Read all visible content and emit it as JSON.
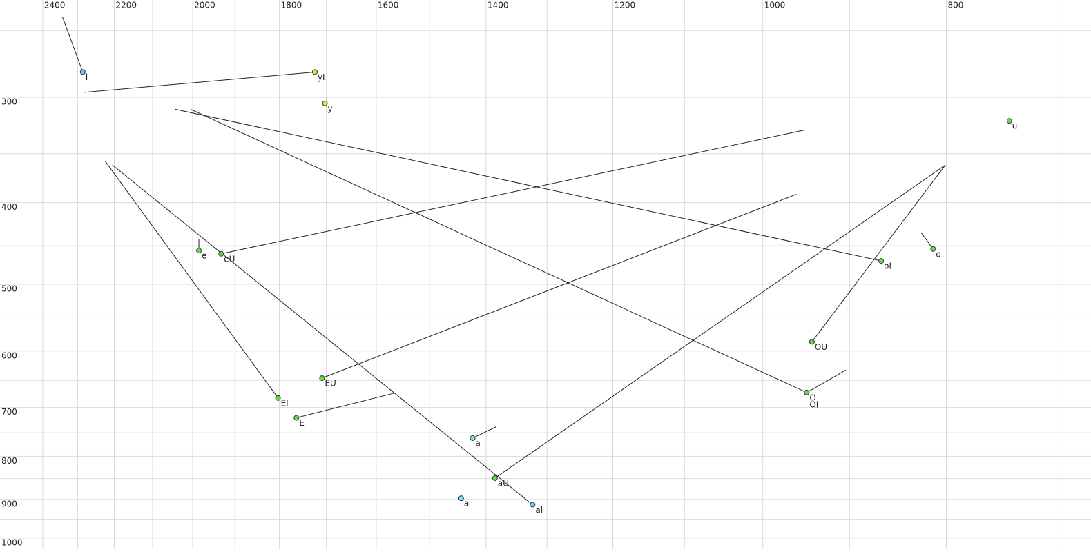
{
  "chart_data": {
    "type": "scatter",
    "xlim": [
      2528,
      671
    ],
    "ylim": [
      230,
      1029
    ],
    "log_x": true,
    "log_y": true,
    "grid": true,
    "xticks": [
      2400,
      2200,
      2000,
      1800,
      1600,
      1400,
      1200,
      1000,
      800
    ],
    "minor_xticks": [
      2300,
      2100,
      1900,
      1700,
      1500,
      1300,
      1100,
      900,
      700
    ],
    "yticks": [
      300,
      400,
      500,
      600,
      700,
      800,
      900,
      1000
    ],
    "minor_yticks": [
      250,
      350,
      450,
      550,
      650,
      750,
      850,
      950
    ],
    "points": [
      {
        "label": "i",
        "x": 2286,
        "y": 280,
        "color": "#8ab8ec",
        "to": [
          2343,
          241
        ]
      },
      {
        "label": "yI",
        "x": 1724,
        "y": 280,
        "color": "#e6e030",
        "to": [
          2282,
          296
        ]
      },
      {
        "label": "y",
        "x": 1703,
        "y": 305,
        "color": "#e6e030"
      },
      {
        "label": "u",
        "x": 741,
        "y": 320,
        "color": "#66dd33"
      },
      {
        "label": "e",
        "x": 1985,
        "y": 456,
        "color": "#66dd33",
        "to": [
          1985,
          442
        ]
      },
      {
        "label": "eU",
        "x": 1932,
        "y": 460,
        "color": "#66dd33",
        "to": [
          950,
          328
        ]
      },
      {
        "label": "oI",
        "x": 866,
        "y": 469,
        "color": "#66dd33",
        "to": [
          2043,
          310
        ]
      },
      {
        "label": "o",
        "x": 813,
        "y": 454,
        "color": "#66dd33",
        "to": [
          825,
          434
        ]
      },
      {
        "label": "OU",
        "x": 942,
        "y": 585,
        "color": "#66dd33",
        "to": [
          801,
          361
        ]
      },
      {
        "label": "EU",
        "x": 1709,
        "y": 646,
        "color": "#66dd33",
        "to": [
          960,
          391
        ]
      },
      {
        "label": "O",
        "x": 948,
        "y": 672,
        "color": "#66dd33",
        "to": [
          904,
          632
        ]
      },
      {
        "label": "OI",
        "x": 948,
        "y": 672,
        "color": "#66dd33",
        "to": [
          2005,
          310
        ]
      },
      {
        "label": "EI",
        "x": 1803,
        "y": 682,
        "color": "#66dd33",
        "to": [
          2225,
          357
        ]
      },
      {
        "label": "E",
        "x": 1763,
        "y": 720,
        "color": "#66dd33",
        "to": [
          1565,
          673
        ]
      },
      {
        "label": "a",
        "x": 1423,
        "y": 761,
        "color": "#80e8c0",
        "label_color": "#667788",
        "to": [
          1383,
          738
        ]
      },
      {
        "label": "aU",
        "x": 1385,
        "y": 849,
        "color": "#66dd33",
        "to": [
          801,
          361
        ]
      },
      {
        "label": "a",
        "x": 1443,
        "y": 897,
        "color": "#70e6e6"
      },
      {
        "label": "aI",
        "x": 1323,
        "y": 913,
        "color": "#6ad8e2",
        "to": [
          2205,
          361
        ]
      }
    ]
  }
}
